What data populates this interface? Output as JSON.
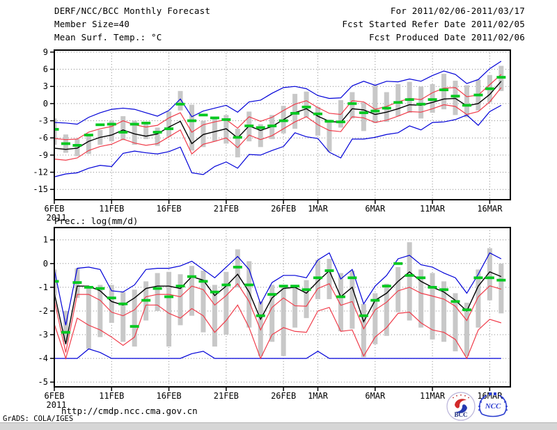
{
  "header": {
    "title": "DERF/NCC/BCC Monthly Forecast",
    "member_size": "Member Size=40",
    "for_range": "For 2011/02/06-2011/03/17",
    "refer_date": "Fcst Started Refer Date 2011/02/05",
    "produced_date": "Fcst Produced Date 2011/02/06"
  },
  "footer": {
    "url": "http://cmdp.ncc.cma.gov.cn",
    "grads_credit": "GrADS: COLA/IGES",
    "logos": [
      {
        "name": "bcc-logo",
        "label": "BCC"
      },
      {
        "name": "ncc-logo",
        "label": "NCC"
      }
    ]
  },
  "colors": {
    "envelope": "#0000d8",
    "spread": "#f03c4a",
    "mean": "#000000",
    "observation": "#00c820",
    "member_bar": "#c8c8c8",
    "grid": "#8c8c8c"
  },
  "chart_data": [
    {
      "name": "surface-temperature",
      "type": "line",
      "title": "Mean Surf. Temp.: °C",
      "ylabel": "°C",
      "grid": true,
      "xlim": [
        0,
        39.8
      ],
      "ylim": [
        -16.8,
        9.35
      ],
      "y_ticks": [
        9,
        6,
        3,
        0,
        -3,
        -6,
        -9,
        -12,
        -15
      ],
      "x_ticks": [
        {
          "d": 0,
          "label": "6FEB",
          "sub": "2011"
        },
        {
          "d": 5,
          "label": "11FEB"
        },
        {
          "d": 10,
          "label": "16FEB"
        },
        {
          "d": 15,
          "label": "21FEB"
        },
        {
          "d": 20,
          "label": "26FEB"
        },
        {
          "d": 23,
          "label": "1MAR"
        },
        {
          "d": 28,
          "label": "6MAR"
        },
        {
          "d": 33,
          "label": "11MAR"
        },
        {
          "d": 38,
          "label": "16MAR"
        }
      ],
      "x_dates": [
        "2/6",
        "2/7",
        "2/8",
        "2/9",
        "2/10",
        "2/11",
        "2/12",
        "2/13",
        "2/14",
        "2/15",
        "2/16",
        "2/17",
        "2/18",
        "2/19",
        "2/20",
        "2/21",
        "2/22",
        "2/23",
        "2/24",
        "2/25",
        "2/26",
        "2/27",
        "2/28",
        "3/1",
        "3/2",
        "3/3",
        "3/4",
        "3/5",
        "3/6",
        "3/7",
        "3/8",
        "3/9",
        "3/10",
        "3/11",
        "3/12",
        "3/13",
        "3/14",
        "3/15",
        "3/16",
        "3/17"
      ],
      "bars": {
        "name": "member-spread",
        "lo": [
          -7.2,
          -8.6,
          -9.2,
          -8.8,
          -7.2,
          -6.6,
          -6.4,
          -7.2,
          -6.2,
          -7.4,
          -5.8,
          -1.2,
          -8.2,
          -7.6,
          -6.6,
          -7.0,
          -9.4,
          -6.6,
          -7.6,
          -6.2,
          -5.2,
          -4.4,
          -2.4,
          -5.6,
          -8.4,
          -4.2,
          -2.6,
          -4.8,
          -3.4,
          -3.2,
          -2.2,
          -1.6,
          -2.6,
          -1.6,
          -1.0,
          -2.0,
          -2.4,
          -1.2,
          0.2,
          2.2
        ],
        "hi": [
          -2.6,
          -5.4,
          -6.2,
          -5.6,
          -4.6,
          -3.0,
          -2.2,
          -3.0,
          -3.4,
          -4.2,
          -1.4,
          2.2,
          -0.2,
          -3.0,
          -2.4,
          -2.0,
          -4.4,
          -1.4,
          -3.6,
          -2.0,
          -0.4,
          1.7,
          2.1,
          -0.6,
          -2.8,
          0.6,
          2.0,
          0.2,
          3.2,
          2.0,
          3.4,
          3.8,
          3.0,
          3.4,
          5.2,
          4.0,
          3.2,
          4.2,
          5.0,
          6.6
        ]
      },
      "series": [
        {
          "name": "envelope-max",
          "color": "#0000d8",
          "width": 1.2,
          "values": [
            -3.3,
            -3.4,
            -3.6,
            -2.4,
            -1.6,
            -1.0,
            -0.8,
            -1.0,
            -1.6,
            -2.2,
            -1.2,
            0.8,
            -2.3,
            -1.3,
            -0.8,
            -0.3,
            -1.5,
            0.3,
            0.6,
            1.8,
            2.8,
            3.0,
            2.6,
            1.4,
            0.9,
            1.0,
            3.1,
            3.9,
            3.2,
            3.9,
            3.8,
            4.3,
            3.9,
            4.9,
            5.7,
            5.1,
            3.5,
            4.2,
            6.1,
            7.4
          ]
        },
        {
          "name": "envelope-min",
          "color": "#0000d8",
          "width": 1.2,
          "values": [
            -12.8,
            -12.3,
            -12.1,
            -11.3,
            -10.8,
            -11.0,
            -8.7,
            -8.3,
            -8.6,
            -8.8,
            -8.4,
            -7.6,
            -12.1,
            -12.4,
            -11.0,
            -10.2,
            -11.3,
            -8.9,
            -9.0,
            -8.2,
            -7.5,
            -5.1,
            -5.8,
            -6.1,
            -8.5,
            -9.5,
            -6.2,
            -6.2,
            -5.9,
            -5.4,
            -5.1,
            -3.9,
            -4.6,
            -3.3,
            -3.2,
            -2.8,
            -2.0,
            -3.8,
            -1.4,
            -0.3
          ]
        },
        {
          "name": "spread-upper",
          "color": "#f03c4a",
          "width": 1.2,
          "values": [
            -6.1,
            -6.3,
            -6.2,
            -5.0,
            -4.4,
            -4.0,
            -3.0,
            -3.7,
            -4.1,
            -3.8,
            -2.5,
            -1.6,
            -5.0,
            -3.7,
            -3.2,
            -2.8,
            -4.3,
            -2.3,
            -3.1,
            -2.4,
            -1.2,
            -0.1,
            0.5,
            -0.7,
            -1.7,
            -1.9,
            0.5,
            0.3,
            -1.0,
            -0.5,
            0.3,
            0.9,
            0.7,
            1.9,
            2.7,
            2.8,
            1.2,
            1.5,
            3.3,
            5.1
          ]
        },
        {
          "name": "spread-lower",
          "color": "#f03c4a",
          "width": 1.2,
          "values": [
            -9.7,
            -9.9,
            -9.5,
            -8.2,
            -7.5,
            -7.1,
            -6.2,
            -6.9,
            -7.3,
            -7.0,
            -5.8,
            -4.6,
            -8.8,
            -7.1,
            -6.6,
            -6.0,
            -7.7,
            -5.5,
            -6.3,
            -5.6,
            -4.4,
            -3.2,
            -2.3,
            -3.7,
            -4.7,
            -4.9,
            -2.3,
            -2.5,
            -3.3,
            -2.9,
            -2.2,
            -1.4,
            -1.5,
            -0.9,
            -0.2,
            -0.5,
            -1.9,
            -1.4,
            0.3,
            2.8
          ]
        },
        {
          "name": "ensemble-mean",
          "color": "#000000",
          "width": 1.4,
          "values": [
            -7.8,
            -8.0,
            -7.8,
            -6.6,
            -5.9,
            -5.5,
            -4.6,
            -5.3,
            -5.7,
            -5.3,
            -4.1,
            -3.1,
            -7.0,
            -5.4,
            -4.9,
            -4.4,
            -6.0,
            -3.9,
            -4.7,
            -4.0,
            -2.8,
            -1.6,
            -0.9,
            -2.2,
            -3.1,
            -3.3,
            -0.9,
            -1.1,
            -1.9,
            -1.5,
            -0.9,
            -0.2,
            -0.3,
            0.2,
            0.8,
            0.9,
            -0.4,
            0.0,
            1.6,
            3.9
          ]
        },
        {
          "name": "observation",
          "style": "dash",
          "color": "#00c820",
          "values": [
            -4.5,
            -7.0,
            -7.3,
            -5.5,
            -3.7,
            -3.6,
            -5.0,
            -3.6,
            -3.4,
            -5.0,
            -4.4,
            -0.1,
            -3.0,
            -2.0,
            -2.5,
            -2.8,
            -5.9,
            -3.9,
            -4.2,
            -3.9,
            -3.0,
            -1.7,
            -0.6,
            -1.8,
            -3.1,
            -3.2,
            0.0,
            -1.6,
            -1.3,
            -0.8,
            0.2,
            0.7,
            -0.1,
            0.7,
            2.4,
            1.3,
            -0.3,
            1.5,
            2.6,
            4.6
          ]
        }
      ]
    },
    {
      "name": "precipitation",
      "type": "line",
      "title": "Prec.: log(mm/d)",
      "ylabel": "log(mm/d)",
      "grid": true,
      "xlim": [
        0,
        39.8
      ],
      "ylim": [
        -5.2,
        1.52
      ],
      "y_ticks": [
        1,
        0,
        -1,
        -2,
        -3,
        -4,
        -5
      ],
      "x_ticks": [
        {
          "d": 0,
          "label": "6FEB",
          "sub": "2011"
        },
        {
          "d": 5,
          "label": "11FEB"
        },
        {
          "d": 10,
          "label": "16FEB"
        },
        {
          "d": 15,
          "label": "21FEB"
        },
        {
          "d": 20,
          "label": "26FEB"
        },
        {
          "d": 23,
          "label": "1MAR"
        },
        {
          "d": 28,
          "label": "6MAR"
        },
        {
          "d": 33,
          "label": "11MAR"
        },
        {
          "d": 38,
          "label": "16MAR"
        }
      ],
      "x_dates": [
        "2/6",
        "2/7",
        "2/8",
        "2/9",
        "2/10",
        "2/11",
        "2/12",
        "2/13",
        "2/14",
        "2/15",
        "2/16",
        "2/17",
        "2/18",
        "2/19",
        "2/20",
        "2/21",
        "2/22",
        "2/23",
        "2/24",
        "2/25",
        "2/26",
        "2/27",
        "2/28",
        "3/1",
        "3/2",
        "3/3",
        "3/4",
        "3/5",
        "3/6",
        "3/7",
        "3/8",
        "3/9",
        "3/10",
        "3/11",
        "3/12",
        "3/13",
        "3/14",
        "3/15",
        "3/16",
        "3/17"
      ],
      "bars": {
        "name": "member-spread",
        "lo": [
          -1.35,
          -3.3,
          -1.45,
          -3.6,
          -3.1,
          -2.5,
          -3.3,
          -3.5,
          -2.4,
          -2.0,
          -3.5,
          -2.6,
          -2.2,
          -2.9,
          -3.5,
          -3.0,
          -1.0,
          -2.7,
          -3.9,
          -3.3,
          -3.9,
          -2.7,
          -2.3,
          -1.5,
          -1.5,
          -2.85,
          -2.75,
          -3.95,
          -3.4,
          -3.05,
          -2.05,
          -2.4,
          -2.7,
          -3.2,
          -3.3,
          -3.7,
          -3.9,
          -2.7,
          -1.55,
          -2.1
        ],
        "hi": [
          -0.25,
          -2.0,
          -0.2,
          -1.0,
          -0.9,
          -0.9,
          -1.2,
          -1.1,
          -0.75,
          -0.4,
          -0.35,
          -0.45,
          -0.1,
          -0.3,
          -0.9,
          -0.35,
          0.6,
          0.1,
          -1.6,
          -0.9,
          -0.9,
          -0.9,
          -0.7,
          0.15,
          0.2,
          -0.4,
          -0.3,
          -1.7,
          -1.25,
          -0.85,
          -0.15,
          0.9,
          -0.25,
          -0.4,
          -0.75,
          -1.25,
          -1.65,
          -0.25,
          0.65,
          0.0
        ]
      },
      "series": [
        {
          "name": "envelope-max",
          "color": "#0000d8",
          "width": 1.2,
          "values": [
            -0.25,
            -2.6,
            -0.2,
            -0.15,
            -0.25,
            -1.15,
            -1.2,
            -0.9,
            -0.25,
            -0.2,
            -0.2,
            -0.1,
            0.1,
            -0.25,
            -0.6,
            -0.15,
            0.3,
            -0.25,
            -1.7,
            -0.8,
            -0.5,
            -0.5,
            -0.6,
            0.15,
            0.45,
            -0.65,
            -0.25,
            -1.7,
            -0.95,
            -0.5,
            0.2,
            0.35,
            -0.05,
            -0.15,
            -0.4,
            -0.6,
            -1.25,
            -0.45,
            0.45,
            0.2
          ]
        },
        {
          "name": "envelope-min",
          "color": "#0000d8",
          "width": 1.2,
          "values": [
            -4,
            -4,
            -4,
            -3.6,
            -3.75,
            -4,
            -4,
            -4,
            -4,
            -4,
            -4,
            -4,
            -3.8,
            -3.7,
            -4,
            -4,
            -4,
            -4,
            -4,
            -4,
            -4,
            -4,
            -4,
            -3.7,
            -4,
            -4,
            -4,
            -4,
            -4,
            -4,
            -4,
            -4,
            -4,
            -4,
            -4,
            -4,
            -4,
            -4,
            -4,
            -4
          ]
        },
        {
          "name": "spread-upper",
          "color": "#f03c4a",
          "width": 1.2,
          "values": [
            -1.55,
            -3.75,
            -1.3,
            -1.3,
            -1.55,
            -2.05,
            -2.2,
            -1.95,
            -1.4,
            -1.3,
            -1.3,
            -1.4,
            -0.95,
            -1.1,
            -1.75,
            -1.35,
            -0.85,
            -1.6,
            -2.8,
            -1.85,
            -1.45,
            -1.78,
            -1.8,
            -1.05,
            -0.85,
            -1.76,
            -1.6,
            -2.75,
            -1.95,
            -1.63,
            -1.15,
            -1.0,
            -1.25,
            -1.37,
            -1.5,
            -1.8,
            -2.4,
            -1.4,
            -0.94,
            -1.08
          ]
        },
        {
          "name": "spread-lower",
          "color": "#f03c4a",
          "width": 1.2,
          "values": [
            -2.55,
            -4.0,
            -2.3,
            -2.6,
            -2.8,
            -3.1,
            -3.45,
            -3.1,
            -1.75,
            -1.75,
            -2.1,
            -2.3,
            -1.9,
            -2.2,
            -2.9,
            -2.4,
            -1.75,
            -2.7,
            -4.0,
            -3.0,
            -2.7,
            -2.86,
            -2.9,
            -2.0,
            -1.85,
            -2.86,
            -2.8,
            -3.9,
            -3.1,
            -2.7,
            -2.1,
            -2.05,
            -2.5,
            -2.8,
            -2.9,
            -3.2,
            -4.0,
            -2.8,
            -2.35,
            -2.5
          ]
        },
        {
          "name": "ensemble-mean",
          "color": "#000000",
          "width": 1.4,
          "values": [
            -1.25,
            -3.4,
            -0.95,
            -0.95,
            -1.15,
            -1.6,
            -1.75,
            -1.45,
            -1.05,
            -0.95,
            -0.95,
            -1.05,
            -0.55,
            -0.7,
            -1.35,
            -0.95,
            -0.45,
            -1.2,
            -2.35,
            -1.45,
            -1.05,
            -1.0,
            -1.25,
            -0.75,
            -0.3,
            -1.4,
            -1.0,
            -2.45,
            -1.55,
            -1.25,
            -0.75,
            -0.35,
            -0.75,
            -1.0,
            -1.2,
            -1.55,
            -2.0,
            -0.95,
            -0.35,
            -0.55
          ]
        },
        {
          "name": "observation",
          "style": "dash",
          "color": "#00c820",
          "values": [
            -0.75,
            -2.9,
            -0.8,
            -1.0,
            -1.05,
            -1.45,
            -1.7,
            -2.65,
            -1.55,
            -1.05,
            -1.4,
            -0.95,
            -0.55,
            -0.75,
            -1.2,
            -0.9,
            -0.15,
            -0.9,
            -2.2,
            -1.3,
            -0.95,
            -0.95,
            -1.1,
            -0.6,
            -0.3,
            -1.4,
            -0.6,
            -2.2,
            -1.55,
            -0.95,
            0.0,
            -0.5,
            -0.6,
            -1.0,
            -1.1,
            -1.6,
            -1.95,
            -0.6,
            -0.6,
            -0.7
          ]
        }
      ]
    }
  ]
}
